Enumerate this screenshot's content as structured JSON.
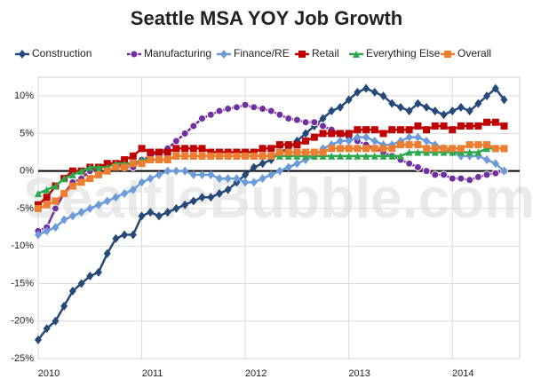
{
  "chart_data": {
    "type": "line",
    "title": "Seattle MSA YOY Job Growth",
    "watermark": "SeattleBubble.com",
    "x": [
      2010,
      2010.083,
      2010.167,
      2010.25,
      2010.333,
      2010.417,
      2010.5,
      2010.583,
      2010.667,
      2010.75,
      2010.833,
      2010.917,
      2011,
      2011.083,
      2011.167,
      2011.25,
      2011.333,
      2011.417,
      2011.5,
      2011.583,
      2011.667,
      2011.75,
      2011.833,
      2011.917,
      2012,
      2012.083,
      2012.167,
      2012.25,
      2012.333,
      2012.417,
      2012.5,
      2012.583,
      2012.667,
      2012.75,
      2012.833,
      2012.917,
      2013,
      2013.083,
      2013.167,
      2013.25,
      2013.333,
      2013.417,
      2013.5,
      2013.583,
      2013.667,
      2013.75,
      2013.833,
      2013.917,
      2014,
      2014.083,
      2014.167,
      2014.25,
      2014.333,
      2014.417,
      2014.5
    ],
    "xlim": [
      2010,
      2014.65
    ],
    "xticks": [
      2010,
      2011,
      2012,
      2013,
      2014
    ],
    "ylim": [
      -25,
      12.5
    ],
    "yticks": [
      {
        "value": -25,
        "label": "-25%"
      },
      {
        "value": -20,
        "label": "-20%"
      },
      {
        "value": -15,
        "label": "-15%"
      },
      {
        "value": -10,
        "label": "-10%"
      },
      {
        "value": -5,
        "label": "-5%"
      },
      {
        "value": 0,
        "label": "0%"
      },
      {
        "value": 5,
        "label": "5%"
      },
      {
        "value": 10,
        "label": "10%"
      }
    ],
    "grid": true,
    "series": [
      {
        "name": "Construction",
        "color": "#254a7a",
        "marker": "diamond",
        "values": [
          -22.5,
          -21,
          -20,
          -18,
          -16,
          -15,
          -14,
          -13.5,
          -11,
          -9,
          -8.5,
          -8.5,
          -6,
          -5.5,
          -6,
          -5.5,
          -5,
          -4.5,
          -4,
          -3.5,
          -3.5,
          -3,
          -2.5,
          -1.5,
          -0.5,
          0.5,
          1,
          1.5,
          2.5,
          3,
          4,
          5,
          6,
          7,
          8,
          8.5,
          9.5,
          10.5,
          11,
          10.5,
          10,
          9,
          8.5,
          8,
          9,
          8.5,
          8,
          7.5,
          8,
          8.5,
          8,
          9,
          10,
          11,
          9.5
        ]
      },
      {
        "name": "Manufacturing",
        "color": "#7030a0",
        "marker": "circle",
        "values": [
          -8,
          -7.5,
          -5,
          -3,
          -1.5,
          -1,
          0,
          0.5,
          1,
          1,
          0.5,
          0.5,
          1.5,
          2,
          2.5,
          3,
          4,
          5,
          6,
          7,
          7.5,
          8,
          8.3,
          8.5,
          8.8,
          8.5,
          8.3,
          8,
          7.5,
          7,
          6.8,
          6.5,
          6.5,
          6,
          5.5,
          5,
          4.5,
          4,
          3.5,
          3,
          2.5,
          2,
          1.5,
          1,
          0.5,
          0,
          -0.5,
          -0.5,
          -1,
          -1,
          -1.2,
          -0.8,
          -0.5,
          -0.3,
          0
        ]
      },
      {
        "name": "Finance/RE",
        "color": "#6b9bd8",
        "marker": "diamond",
        "values": [
          -8.5,
          -8,
          -7.5,
          -6.5,
          -6,
          -5.5,
          -5,
          -4.5,
          -4,
          -3.5,
          -3,
          -2.5,
          -1.5,
          -1,
          -0.5,
          0,
          0,
          0,
          -0.5,
          -0.5,
          -0.5,
          -1,
          -1,
          -1,
          -1.5,
          -1.5,
          -1,
          -0.5,
          0,
          0.5,
          1,
          1.5,
          2,
          3,
          3.5,
          4,
          4,
          4.5,
          4.5,
          4,
          3.5,
          3.5,
          4,
          4.5,
          4.5,
          4,
          3.5,
          3,
          2.5,
          2,
          2,
          2,
          1.5,
          1,
          0
        ]
      },
      {
        "name": "Retail",
        "color": "#c00000",
        "marker": "square",
        "values": [
          -4.5,
          -3.5,
          -2,
          -1,
          0,
          0,
          0.5,
          0.5,
          1,
          1,
          1.5,
          2,
          3,
          2.5,
          2.5,
          2.5,
          3,
          3,
          3,
          3,
          2.5,
          2.5,
          2.5,
          2.5,
          2.5,
          2.5,
          3,
          3,
          3.5,
          3.5,
          3.5,
          4,
          4.5,
          5,
          5,
          5,
          5,
          5.5,
          5.5,
          5.5,
          5,
          5.5,
          5.5,
          5.5,
          6,
          5.5,
          6,
          6,
          5.5,
          6,
          6,
          6,
          6.5,
          6.5,
          6
        ]
      },
      {
        "name": "Everything Else",
        "color": "#2aa84a",
        "marker": "triangle",
        "values": [
          -3,
          -2.5,
          -2,
          -1,
          -0.5,
          0,
          0.5,
          0.5,
          0.5,
          1,
          1,
          1,
          1.5,
          1.5,
          1.5,
          1.5,
          2,
          2,
          2,
          2,
          2,
          2,
          2,
          2,
          2,
          2,
          2,
          2,
          2,
          2,
          2,
          2,
          2,
          2,
          2,
          2,
          2,
          2,
          2,
          2,
          2,
          2,
          2,
          2.5,
          2.5,
          2.5,
          2.5,
          2.5,
          2.5,
          2.5,
          2.5,
          2.5,
          3,
          3,
          3
        ]
      },
      {
        "name": "Overall",
        "color": "#ed7d31",
        "marker": "square",
        "values": [
          -5,
          -4.5,
          -4,
          -3,
          -2,
          -1.5,
          -1,
          -0.5,
          0,
          0.5,
          0.5,
          1,
          1,
          1.5,
          1.5,
          1.5,
          2,
          2,
          2,
          2,
          2,
          2,
          2,
          2,
          2,
          2,
          2,
          2,
          2.5,
          2.5,
          2.5,
          2.5,
          2.5,
          2.5,
          3,
          3,
          3,
          3,
          3,
          3,
          3,
          3,
          3.5,
          3.5,
          3.5,
          3,
          3,
          3,
          3,
          3,
          3.5,
          3.5,
          3.5,
          3,
          3
        ]
      }
    ]
  }
}
